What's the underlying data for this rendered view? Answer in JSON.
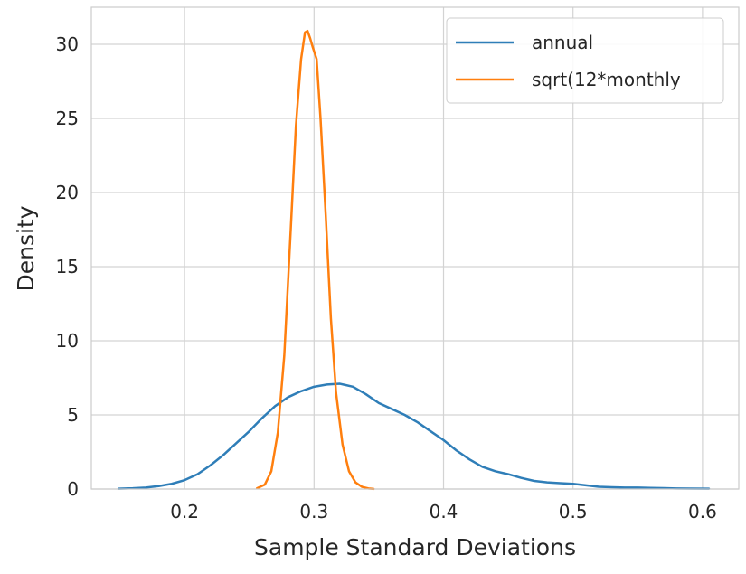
{
  "chart_data": {
    "type": "line",
    "title": "",
    "xlabel": "Sample Standard Deviations",
    "ylabel": "Density",
    "xlim": [
      0.128,
      0.628
    ],
    "ylim": [
      0,
      32.5
    ],
    "xticks": [
      0.2,
      0.3,
      0.4,
      0.5,
      0.6
    ],
    "xtick_labels": [
      "0.2",
      "0.3",
      "0.4",
      "0.5",
      "0.6"
    ],
    "yticks": [
      0,
      5,
      10,
      15,
      20,
      25,
      30
    ],
    "ytick_labels": [
      "0",
      "5",
      "10",
      "15",
      "20",
      "25",
      "30"
    ],
    "grid": true,
    "legend_position": "top-right",
    "colors": {
      "annual": "#2f7eb8",
      "monthly": "#ff7f0e",
      "grid": "#d3d3d3",
      "frame": "#cccccc",
      "text": "#262626"
    },
    "series": [
      {
        "name": "annual",
        "color": "#2f7eb8",
        "x": [
          0.149,
          0.16,
          0.17,
          0.18,
          0.19,
          0.2,
          0.21,
          0.22,
          0.23,
          0.24,
          0.25,
          0.26,
          0.27,
          0.28,
          0.29,
          0.3,
          0.31,
          0.32,
          0.33,
          0.34,
          0.35,
          0.36,
          0.37,
          0.38,
          0.39,
          0.4,
          0.41,
          0.42,
          0.43,
          0.44,
          0.45,
          0.46,
          0.47,
          0.48,
          0.49,
          0.5,
          0.51,
          0.52,
          0.53,
          0.54,
          0.55,
          0.56,
          0.57,
          0.58,
          0.59,
          0.605
        ],
        "y": [
          0.02,
          0.05,
          0.1,
          0.2,
          0.35,
          0.6,
          1.0,
          1.6,
          2.3,
          3.1,
          3.9,
          4.8,
          5.6,
          6.2,
          6.6,
          6.9,
          7.05,
          7.1,
          6.9,
          6.4,
          5.8,
          5.4,
          5.0,
          4.5,
          3.9,
          3.3,
          2.6,
          2.0,
          1.5,
          1.2,
          1.0,
          0.75,
          0.55,
          0.45,
          0.4,
          0.35,
          0.25,
          0.15,
          0.12,
          0.1,
          0.1,
          0.08,
          0.06,
          0.04,
          0.03,
          0.02
        ]
      },
      {
        "name": "sqrt(12*monthly",
        "color": "#ff7f0e",
        "x": [
          0.256,
          0.262,
          0.267,
          0.272,
          0.277,
          0.282,
          0.286,
          0.29,
          0.293,
          0.295,
          0.297,
          0.299,
          0.302,
          0.305,
          0.309,
          0.313,
          0.317,
          0.322,
          0.327,
          0.332,
          0.337,
          0.342,
          0.346
        ],
        "y": [
          0.05,
          0.3,
          1.2,
          3.8,
          9.0,
          17.5,
          24.5,
          29.0,
          30.8,
          30.9,
          30.4,
          29.8,
          29.0,
          25.0,
          18.5,
          11.5,
          6.5,
          3.0,
          1.2,
          0.45,
          0.15,
          0.04,
          0.01
        ]
      }
    ]
  }
}
